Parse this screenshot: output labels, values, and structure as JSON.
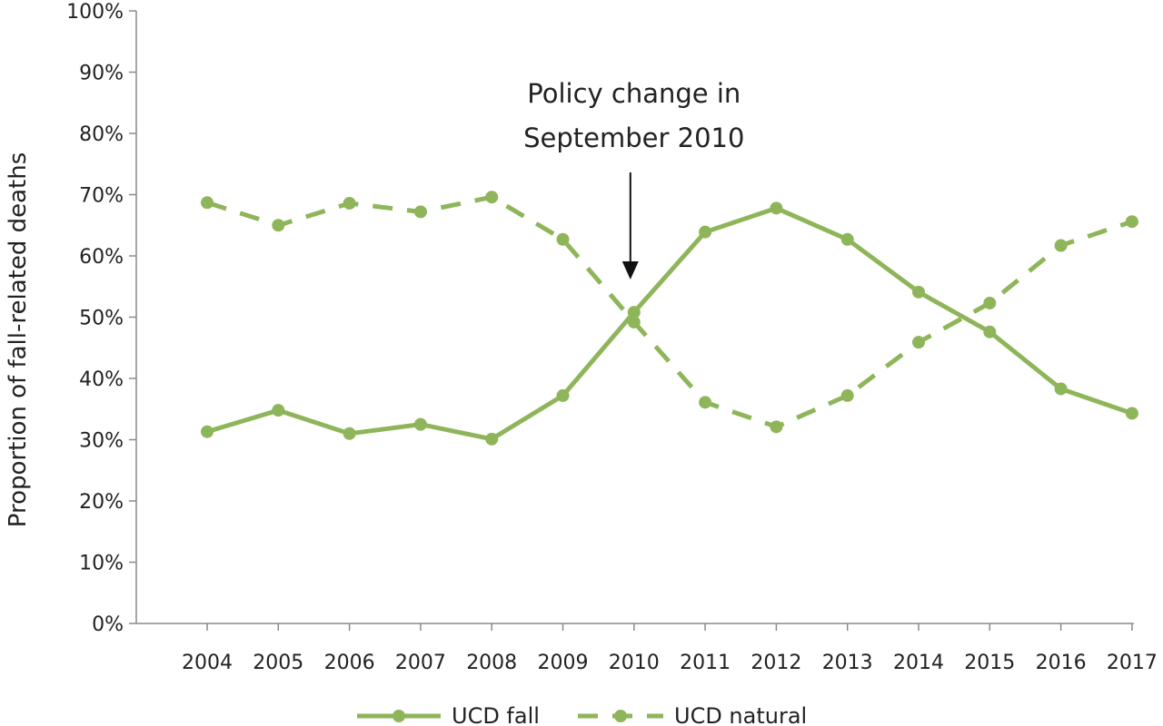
{
  "chart_data": {
    "type": "line",
    "title": "",
    "xlabel": "",
    "ylabel": "Proportion of fall-related deaths",
    "x": [
      "2004",
      "2005",
      "2006",
      "2007",
      "2008",
      "2009",
      "2010",
      "2011",
      "2012",
      "2013",
      "2014",
      "2015",
      "2016",
      "2017"
    ],
    "ylim": [
      0,
      100
    ],
    "yticks": [
      "0%",
      "10%",
      "20%",
      "30%",
      "40%",
      "50%",
      "60%",
      "70%",
      "80%",
      "90%",
      "100%"
    ],
    "grid": false,
    "legend_position": "bottom",
    "series": [
      {
        "name": "UCD fall",
        "line_style": "solid",
        "color": "#8fb55a",
        "values": [
          31.3,
          34.8,
          31.0,
          32.5,
          30.1,
          37.2,
          50.8,
          63.9,
          67.8,
          62.7,
          54.1,
          47.6,
          38.3,
          34.3
        ]
      },
      {
        "name": "UCD natural",
        "line_style": "dashed",
        "color": "#8fb55a",
        "values": [
          68.7,
          65.0,
          68.6,
          67.2,
          69.6,
          62.7,
          49.2,
          36.1,
          32.1,
          37.2,
          45.9,
          52.3,
          61.7,
          65.6
        ]
      }
    ],
    "annotations": [
      {
        "lines": [
          "Policy change in",
          "September 2010"
        ],
        "points_to_x": "2010",
        "arrow": "down"
      }
    ]
  }
}
